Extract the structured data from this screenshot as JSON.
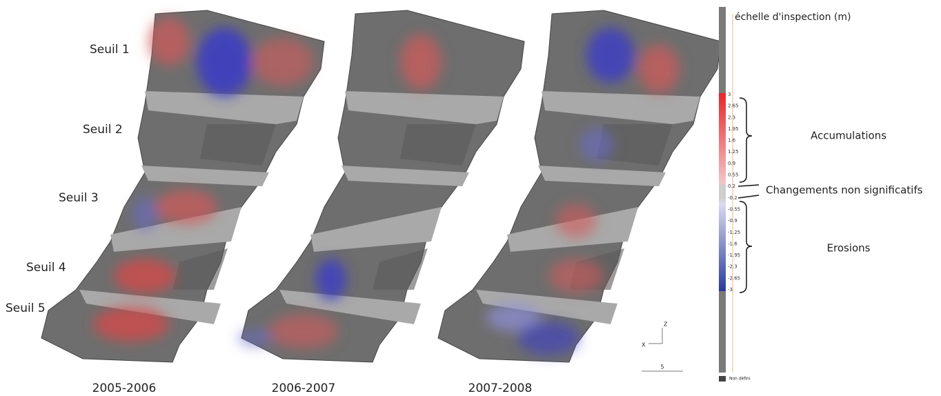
{
  "labels": {
    "thresholds": [
      "Seuil 1",
      "Seuil 2",
      "Seuil 3",
      "Seuil 4",
      "Seuil 5"
    ],
    "periods": [
      "2005-2006",
      "2006-2007",
      "2007-2008"
    ]
  },
  "scale": {
    "title": "échelle d'inspection (m)",
    "ticks": [
      "3",
      "2.65",
      "2.3",
      "1.95",
      "1.6",
      "1.25",
      "0.9",
      "0.55",
      "0.2",
      "-0.2",
      "-0.55",
      "-0.9",
      "-1.25",
      "-1.6",
      "-1.95",
      "-2.3",
      "-2.65",
      "-3"
    ],
    "undefined": "Non défini"
  },
  "annotations": {
    "accumulations": "Accumulations",
    "insignificant": "Changements non significatifs",
    "erosions": "Erosions"
  },
  "axes": {
    "z": "Z",
    "x": "X",
    "scale_bar": "5"
  }
}
